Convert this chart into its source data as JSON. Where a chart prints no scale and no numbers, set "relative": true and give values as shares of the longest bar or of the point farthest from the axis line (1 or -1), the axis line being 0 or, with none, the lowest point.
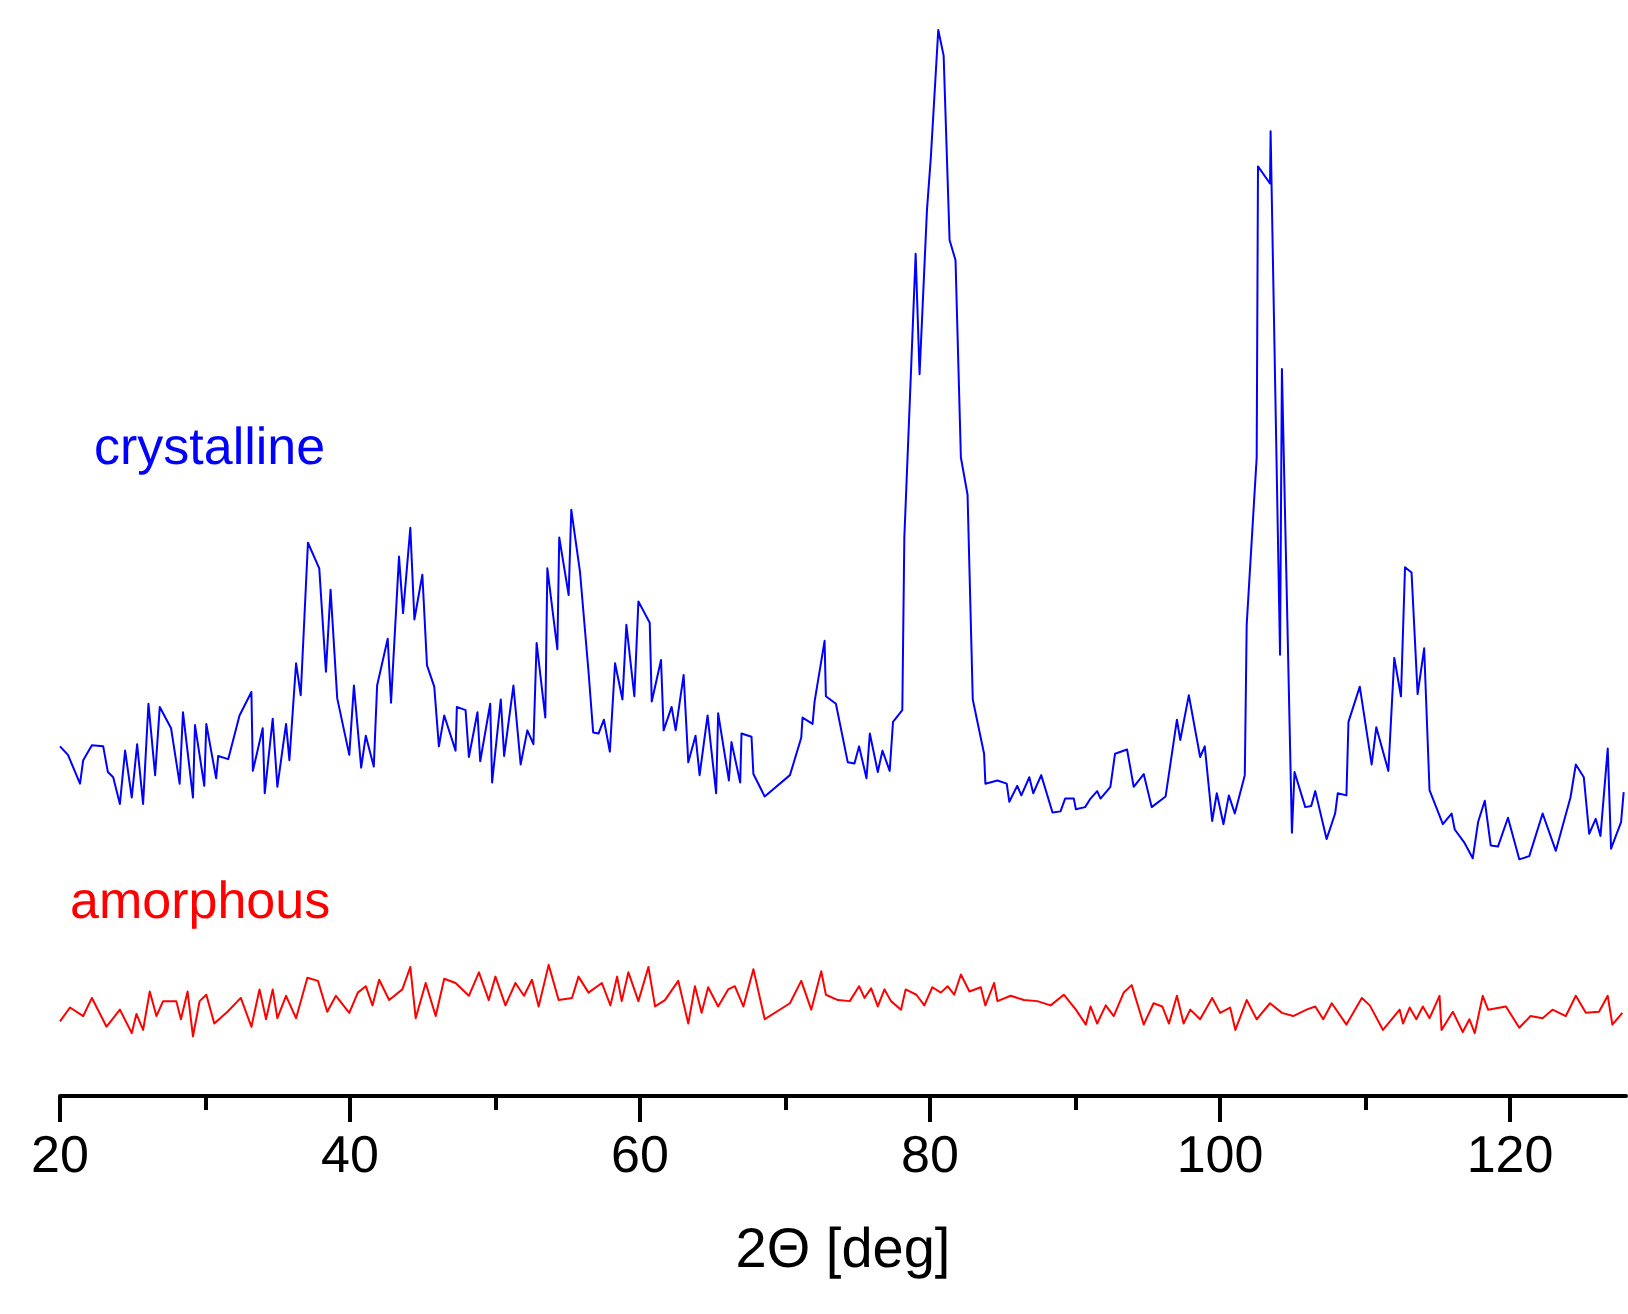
{
  "chart_data": {
    "type": "line",
    "xlabel": "2Θ [deg]",
    "relative": true,
    "marker": "none",
    "xlim": [
      20,
      128
    ],
    "xticks": [
      20,
      {
        "value": 30,
        "label": null
      },
      40,
      {
        "value": 50,
        "label": null
      },
      60,
      {
        "value": 70,
        "label": null
      },
      80,
      {
        "value": 90,
        "label": null
      },
      100,
      {
        "value": 110,
        "label": null
      },
      120
    ],
    "series": [
      {
        "name": "crystalline",
        "color": "#0000ff",
        "x": [
          20.0,
          20.55,
          21.38,
          21.6,
          22.2,
          22.98,
          23.3,
          23.67,
          24.13,
          24.49,
          24.95,
          25.32,
          25.73,
          26.1,
          26.56,
          26.88,
          27.66,
          28.25,
          28.48,
          29.17,
          29.31,
          29.95,
          30.09,
          30.77,
          30.91,
          31.6,
          32.38,
          33.2,
          33.3,
          33.98,
          34.12,
          34.67,
          34.99,
          35.59,
          35.82,
          36.28,
          36.6,
          37.1,
          37.88,
          38.34,
          38.66,
          39.12,
          39.95,
          40.27,
          40.77,
          41.09,
          41.64,
          41.87,
          42.6,
          42.83,
          43.38,
          43.66,
          44.16,
          44.44,
          44.99,
          45.31,
          45.81,
          46.13,
          46.5,
          47.28,
          47.37,
          47.97,
          48.2,
          48.79,
          48.98,
          49.67,
          49.8,
          50.4,
          50.63,
          51.27,
          51.77,
          52.23,
          52.65,
          52.87,
          53.47,
          53.61,
          54.3,
          54.43,
          55.08,
          55.26,
          55.86,
          56.45,
          56.77,
          57.14,
          57.51,
          57.92,
          58.28,
          58.79,
          59.06,
          59.61,
          59.89,
          60.67,
          60.81,
          61.45,
          61.63,
          62.18,
          62.46,
          63.01,
          63.33,
          63.83,
          64.11,
          64.66,
          65.25,
          65.39,
          66.13,
          66.31,
          66.91,
          67.0,
          67.69,
          67.82,
          68.6,
          70.34,
          71.12,
          71.21,
          71.9,
          72.04,
          72.73,
          72.82,
          73.51,
          74.33,
          74.79,
          75.11,
          75.62,
          75.85,
          76.4,
          76.72,
          77.22,
          77.45,
          78.09,
          78.23,
          78.69,
          79.01,
          79.28,
          79.79,
          80.06,
          80.57,
          80.94,
          81.35,
          81.76,
          82.13,
          82.59,
          82.95,
          83.73,
          83.82,
          84.65,
          85.29,
          85.47,
          86.02,
          86.3,
          86.85,
          87.12,
          87.67,
          88.45,
          89.0,
          89.32,
          89.92,
          90.06,
          90.7,
          91.07,
          91.53,
          91.76,
          92.44,
          92.76,
          93.59,
          94.05,
          94.74,
          95.29,
          96.25,
          97.03,
          97.26,
          97.85,
          98.63,
          98.95,
          99.46,
          99.78,
          100.24,
          100.61,
          101.02,
          101.71,
          101.84,
          102.53,
          102.62,
          103.45,
          103.49,
          104.14,
          104.27,
          104.96,
          105.14,
          105.88,
          106.29,
          106.57,
          107.35,
          107.94,
          108.12,
          108.72,
          108.86,
          109.64,
          110.46,
          110.78,
          111.61,
          112.02,
          112.48,
          112.76,
          113.21,
          113.63,
          114.08,
          114.45,
          115.37,
          115.97,
          116.19,
          116.84,
          117.43,
          117.8,
          118.26,
          118.67,
          119.17,
          119.86,
          120.64,
          121.33,
          122.25,
          123.16,
          124.17,
          124.54,
          125.09,
          125.46,
          125.91,
          126.24,
          126.74,
          126.97,
          127.66,
          127.84
        ],
        "values": [
          0.328,
          0.32,
          0.293,
          0.315,
          0.329,
          0.328,
          0.304,
          0.299,
          0.274,
          0.324,
          0.28,
          0.33,
          0.274,
          0.368,
          0.301,
          0.365,
          0.345,
          0.293,
          0.36,
          0.28,
          0.348,
          0.291,
          0.349,
          0.298,
          0.319,
          0.316,
          0.357,
          0.379,
          0.305,
          0.345,
          0.284,
          0.354,
          0.29,
          0.349,
          0.315,
          0.406,
          0.376,
          0.519,
          0.495,
          0.398,
          0.475,
          0.373,
          0.32,
          0.385,
          0.308,
          0.338,
          0.309,
          0.385,
          0.429,
          0.369,
          0.506,
          0.453,
          0.533,
          0.447,
          0.489,
          0.404,
          0.384,
          0.328,
          0.357,
          0.324,
          0.365,
          0.362,
          0.318,
          0.36,
          0.314,
          0.368,
          0.294,
          0.372,
          0.319,
          0.385,
          0.311,
          0.343,
          0.33,
          0.425,
          0.355,
          0.495,
          0.419,
          0.524,
          0.47,
          0.55,
          0.492,
          0.398,
          0.341,
          0.34,
          0.353,
          0.323,
          0.406,
          0.372,
          0.442,
          0.375,
          0.464,
          0.444,
          0.37,
          0.409,
          0.343,
          0.365,
          0.343,
          0.395,
          0.313,
          0.338,
          0.301,
          0.357,
          0.284,
          0.359,
          0.296,
          0.332,
          0.294,
          0.34,
          0.337,
          0.302,
          0.281,
          0.301,
          0.336,
          0.355,
          0.349,
          0.37,
          0.427,
          0.375,
          0.368,
          0.313,
          0.312,
          0.328,
          0.298,
          0.34,
          0.304,
          0.324,
          0.305,
          0.351,
          0.362,
          0.524,
          0.68,
          0.79,
          0.677,
          0.831,
          0.881,
          1,
          0.976,
          0.803,
          0.784,
          0.599,
          0.564,
          0.372,
          0.321,
          0.293,
          0.296,
          0.293,
          0.276,
          0.291,
          0.282,
          0.299,
          0.284,
          0.301,
          0.266,
          0.267,
          0.279,
          0.279,
          0.269,
          0.271,
          0.279,
          0.286,
          0.279,
          0.29,
          0.321,
          0.325,
          0.29,
          0.302,
          0.271,
          0.281,
          0.353,
          0.334,
          0.376,
          0.318,
          0.328,
          0.258,
          0.284,
          0.255,
          0.282,
          0.265,
          0.301,
          0.442,
          0.599,
          0.872,
          0.856,
          0.905,
          0.414,
          0.682,
          0.247,
          0.304,
          0.271,
          0.272,
          0.286,
          0.241,
          0.265,
          0.284,
          0.282,
          0.351,
          0.384,
          0.311,
          0.346,
          0.305,
          0.411,
          0.375,
          0.496,
          0.491,
          0.377,
          0.42,
          0.287,
          0.255,
          0.265,
          0.25,
          0.238,
          0.223,
          0.257,
          0.277,
          0.235,
          0.234,
          0.261,
          0.222,
          0.225,
          0.265,
          0.23,
          0.28,
          0.311,
          0.299,
          0.246,
          0.26,
          0.244,
          0.326,
          0.232,
          0.257,
          0.285
        ]
      },
      {
        "name": "amorphous",
        "color": "#ff0000",
        "x": [
          20.0,
          20.69,
          21.6,
          22.2,
          23.21,
          24.13,
          24.95,
          25.27,
          25.73,
          26.19,
          26.65,
          27.11,
          28.02,
          28.34,
          28.8,
          29.17,
          29.63,
          30.09,
          30.64,
          31.55,
          32.47,
          33.2,
          33.76,
          34.21,
          34.67,
          34.99,
          35.59,
          36.28,
          37.06,
          37.79,
          38.43,
          39.03,
          39.95,
          40.54,
          41.09,
          41.55,
          42.01,
          42.7,
          43.61,
          44.16,
          44.53,
          45.22,
          45.91,
          46.5,
          47.28,
          48.2,
          48.89,
          49.57,
          50.03,
          50.72,
          51.41,
          52.0,
          52.55,
          53.01,
          53.7,
          54.39,
          55.31,
          55.76,
          56.45,
          57.37,
          57.96,
          58.42,
          58.74,
          59.2,
          59.89,
          60.58,
          61.04,
          61.72,
          62.64,
          63.33,
          63.79,
          64.25,
          64.7,
          65.39,
          66.08,
          66.54,
          67.13,
          67.82,
          68.6,
          70.34,
          71.12,
          71.81,
          72.5,
          72.82,
          73.65,
          74.47,
          75.11,
          75.48,
          75.94,
          76.4,
          76.86,
          77.31,
          78.0,
          78.32,
          79.06,
          79.61,
          80.16,
          80.75,
          81.21,
          81.67,
          82.13,
          82.72,
          83.5,
          83.82,
          84.42,
          84.65,
          85.57,
          86.48,
          87.4,
          88.32,
          89.23,
          90.06,
          90.75,
          91.07,
          91.53,
          92.12,
          92.67,
          93.36,
          93.91,
          94.74,
          95.42,
          96.02,
          96.48,
          97.03,
          97.49,
          97.95,
          98.63,
          99.46,
          100.01,
          100.7,
          101.06,
          101.84,
          102.53,
          103.45,
          104.27,
          105.05,
          105.97,
          106.57,
          107.12,
          107.71,
          108.72,
          109.78,
          110.33,
          111.24,
          112.39,
          112.62,
          113.08,
          113.54,
          113.99,
          114.45,
          115.14,
          115.28,
          116.06,
          116.74,
          117.2,
          117.57,
          118.12,
          118.49,
          119.72,
          120.64,
          121.42,
          122.25,
          122.93,
          123.85,
          124.54,
          125.23,
          126.14,
          126.74,
          127.06,
          127.75
        ],
        "values": [
          0.07,
          0.083,
          0.075,
          0.092,
          0.065,
          0.081,
          0.059,
          0.077,
          0.062,
          0.098,
          0.075,
          0.089,
          0.089,
          0.072,
          0.098,
          0.056,
          0.089,
          0.095,
          0.068,
          0.079,
          0.092,
          0.065,
          0.1,
          0.072,
          0.1,
          0.073,
          0.094,
          0.073,
          0.111,
          0.108,
          0.079,
          0.094,
          0.078,
          0.097,
          0.103,
          0.085,
          0.109,
          0.09,
          0.1,
          0.121,
          0.073,
          0.106,
          0.075,
          0.11,
          0.106,
          0.094,
          0.116,
          0.09,
          0.112,
          0.085,
          0.106,
          0.094,
          0.109,
          0.084,
          0.123,
          0.09,
          0.092,
          0.112,
          0.097,
          0.106,
          0.085,
          0.112,
          0.089,
          0.116,
          0.089,
          0.121,
          0.084,
          0.09,
          0.108,
          0.068,
          0.103,
          0.078,
          0.102,
          0.084,
          0.1,
          0.103,
          0.084,
          0.119,
          0.072,
          0.087,
          0.108,
          0.081,
          0.117,
          0.095,
          0.09,
          0.089,
          0.103,
          0.092,
          0.101,
          0.084,
          0.1,
          0.089,
          0.081,
          0.1,
          0.095,
          0.085,
          0.102,
          0.097,
          0.103,
          0.095,
          0.114,
          0.098,
          0.102,
          0.085,
          0.106,
          0.089,
          0.094,
          0.09,
          0.089,
          0.085,
          0.095,
          0.081,
          0.067,
          0.084,
          0.068,
          0.085,
          0.075,
          0.097,
          0.104,
          0.067,
          0.087,
          0.084,
          0.068,
          0.094,
          0.068,
          0.081,
          0.072,
          0.092,
          0.078,
          0.083,
          0.062,
          0.09,
          0.072,
          0.087,
          0.078,
          0.075,
          0.081,
          0.084,
          0.072,
          0.087,
          0.067,
          0.092,
          0.085,
          0.062,
          0.081,
          0.068,
          0.083,
          0.072,
          0.084,
          0.073,
          0.094,
          0.062,
          0.079,
          0.06,
          0.072,
          0.059,
          0.094,
          0.081,
          0.084,
          0.064,
          0.075,
          0.073,
          0.081,
          0.075,
          0.094,
          0.078,
          0.079,
          0.094,
          0.067,
          0.078
        ]
      }
    ]
  }
}
